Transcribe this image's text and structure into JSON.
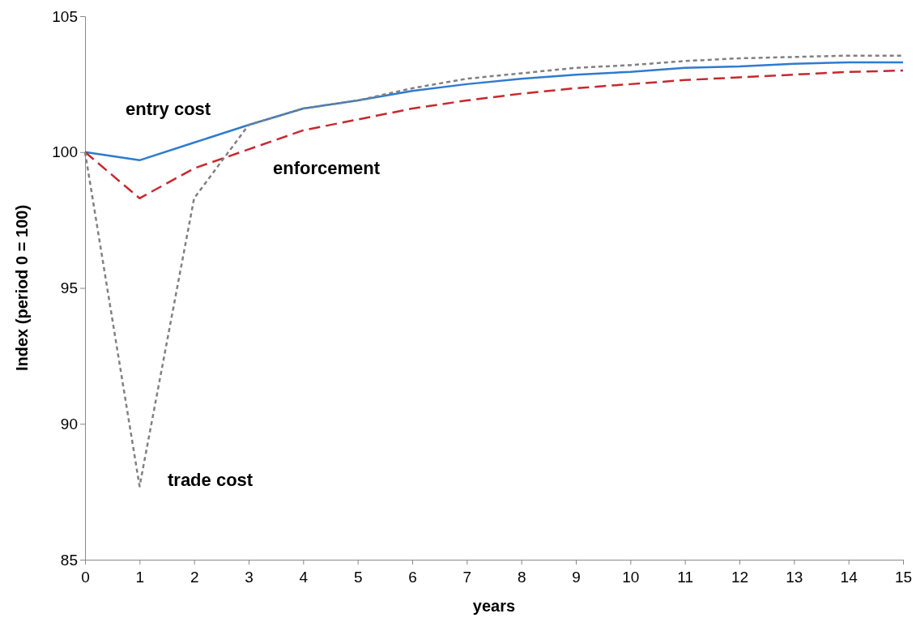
{
  "chart_data": {
    "type": "line",
    "xlabel": "years",
    "ylabel": "Index (period 0 = 100)",
    "x": [
      0,
      1,
      2,
      3,
      4,
      5,
      6,
      7,
      8,
      9,
      10,
      11,
      12,
      13,
      14,
      15
    ],
    "xlim": [
      0,
      15
    ],
    "xticks": [
      0,
      1,
      2,
      3,
      4,
      5,
      6,
      7,
      8,
      9,
      10,
      11,
      12,
      13,
      14,
      15
    ],
    "ylim": [
      85,
      105
    ],
    "yticks": [
      85,
      90,
      95,
      100,
      105
    ],
    "grid": false,
    "legend": false,
    "marker": "none",
    "series": [
      {
        "name": "entry cost",
        "color": "#2e7bd0",
        "line_style": "solid",
        "values": [
          100,
          99.7,
          100.35,
          101.0,
          101.6,
          101.9,
          102.25,
          102.5,
          102.7,
          102.85,
          102.95,
          103.1,
          103.15,
          103.25,
          103.3,
          103.3
        ]
      },
      {
        "name": "enforcement",
        "color": "#c8282d",
        "line_style": "dashed",
        "values": [
          100,
          98.3,
          99.4,
          100.1,
          100.8,
          101.2,
          101.6,
          101.9,
          102.15,
          102.35,
          102.5,
          102.65,
          102.75,
          102.85,
          102.95,
          103.0
        ]
      },
      {
        "name": "trade cost",
        "color": "#808080",
        "line_style": "dotted",
        "values": [
          100,
          87.7,
          98.3,
          101.0,
          101.6,
          101.9,
          102.35,
          102.7,
          102.9,
          103.1,
          103.2,
          103.35,
          103.45,
          103.5,
          103.55,
          103.55
        ]
      }
    ]
  }
}
